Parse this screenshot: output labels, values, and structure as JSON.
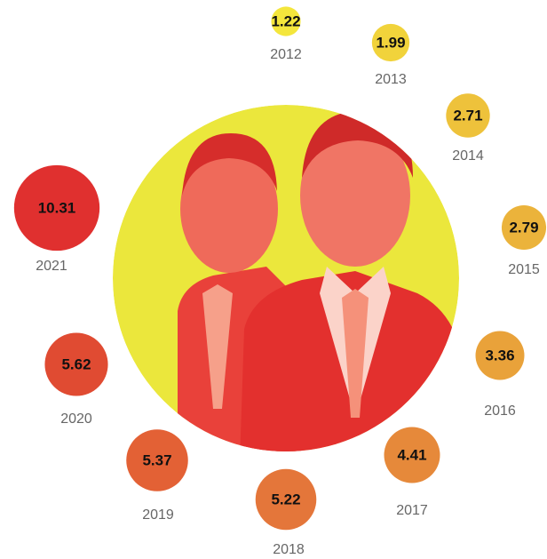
{
  "chart_data": {
    "type": "bubble",
    "categories": [
      "2012",
      "2013",
      "2014",
      "2015",
      "2016",
      "2017",
      "2018",
      "2019",
      "2020",
      "2021"
    ],
    "values": [
      1.22,
      1.99,
      2.71,
      2.79,
      3.36,
      4.41,
      5.22,
      5.37,
      5.62,
      10.31
    ],
    "colors": [
      "#f4e63c",
      "#f1d33b",
      "#eec23b",
      "#ebb33b",
      "#e9a23a",
      "#e6893a",
      "#e4763a",
      "#e36135",
      "#e04b32",
      "#e0302f"
    ]
  }
}
